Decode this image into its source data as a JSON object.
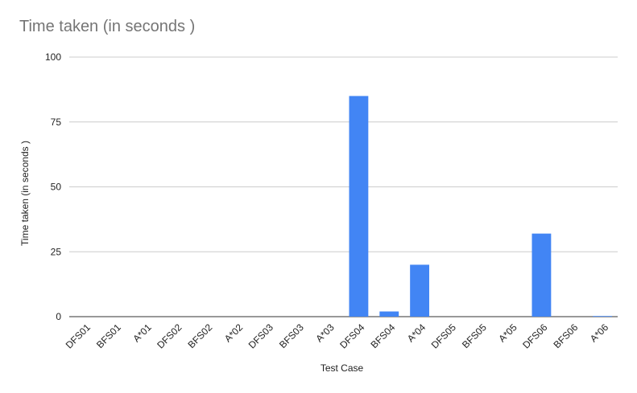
{
  "chart_data": {
    "type": "bar",
    "title": "Time taken (in seconds )",
    "xlabel": "Test Case",
    "ylabel": "Time taken (in seconds )",
    "categories": [
      "DFS01",
      "BFS01",
      "A*01",
      "DFS02",
      "BFS02",
      "A*02",
      "DFS03",
      "BFS03",
      "A*03",
      "DFS04",
      "BFS04",
      "A*04",
      "DFS05",
      "BFS05",
      "A*05",
      "DFS06",
      "BFS06",
      "A*06"
    ],
    "series": [
      {
        "values": [
          0,
          0,
          0,
          0,
          0,
          0,
          0,
          0,
          0,
          85,
          2,
          20,
          0,
          0,
          0,
          32,
          0,
          0.2
        ]
      }
    ],
    "ylim": [
      0,
      100
    ],
    "yticks": [
      "0",
      "25",
      "50",
      "75",
      "100"
    ],
    "grid": true,
    "legend": "none",
    "bar_color": "#4285f4",
    "grid_color": "#cccccc"
  }
}
